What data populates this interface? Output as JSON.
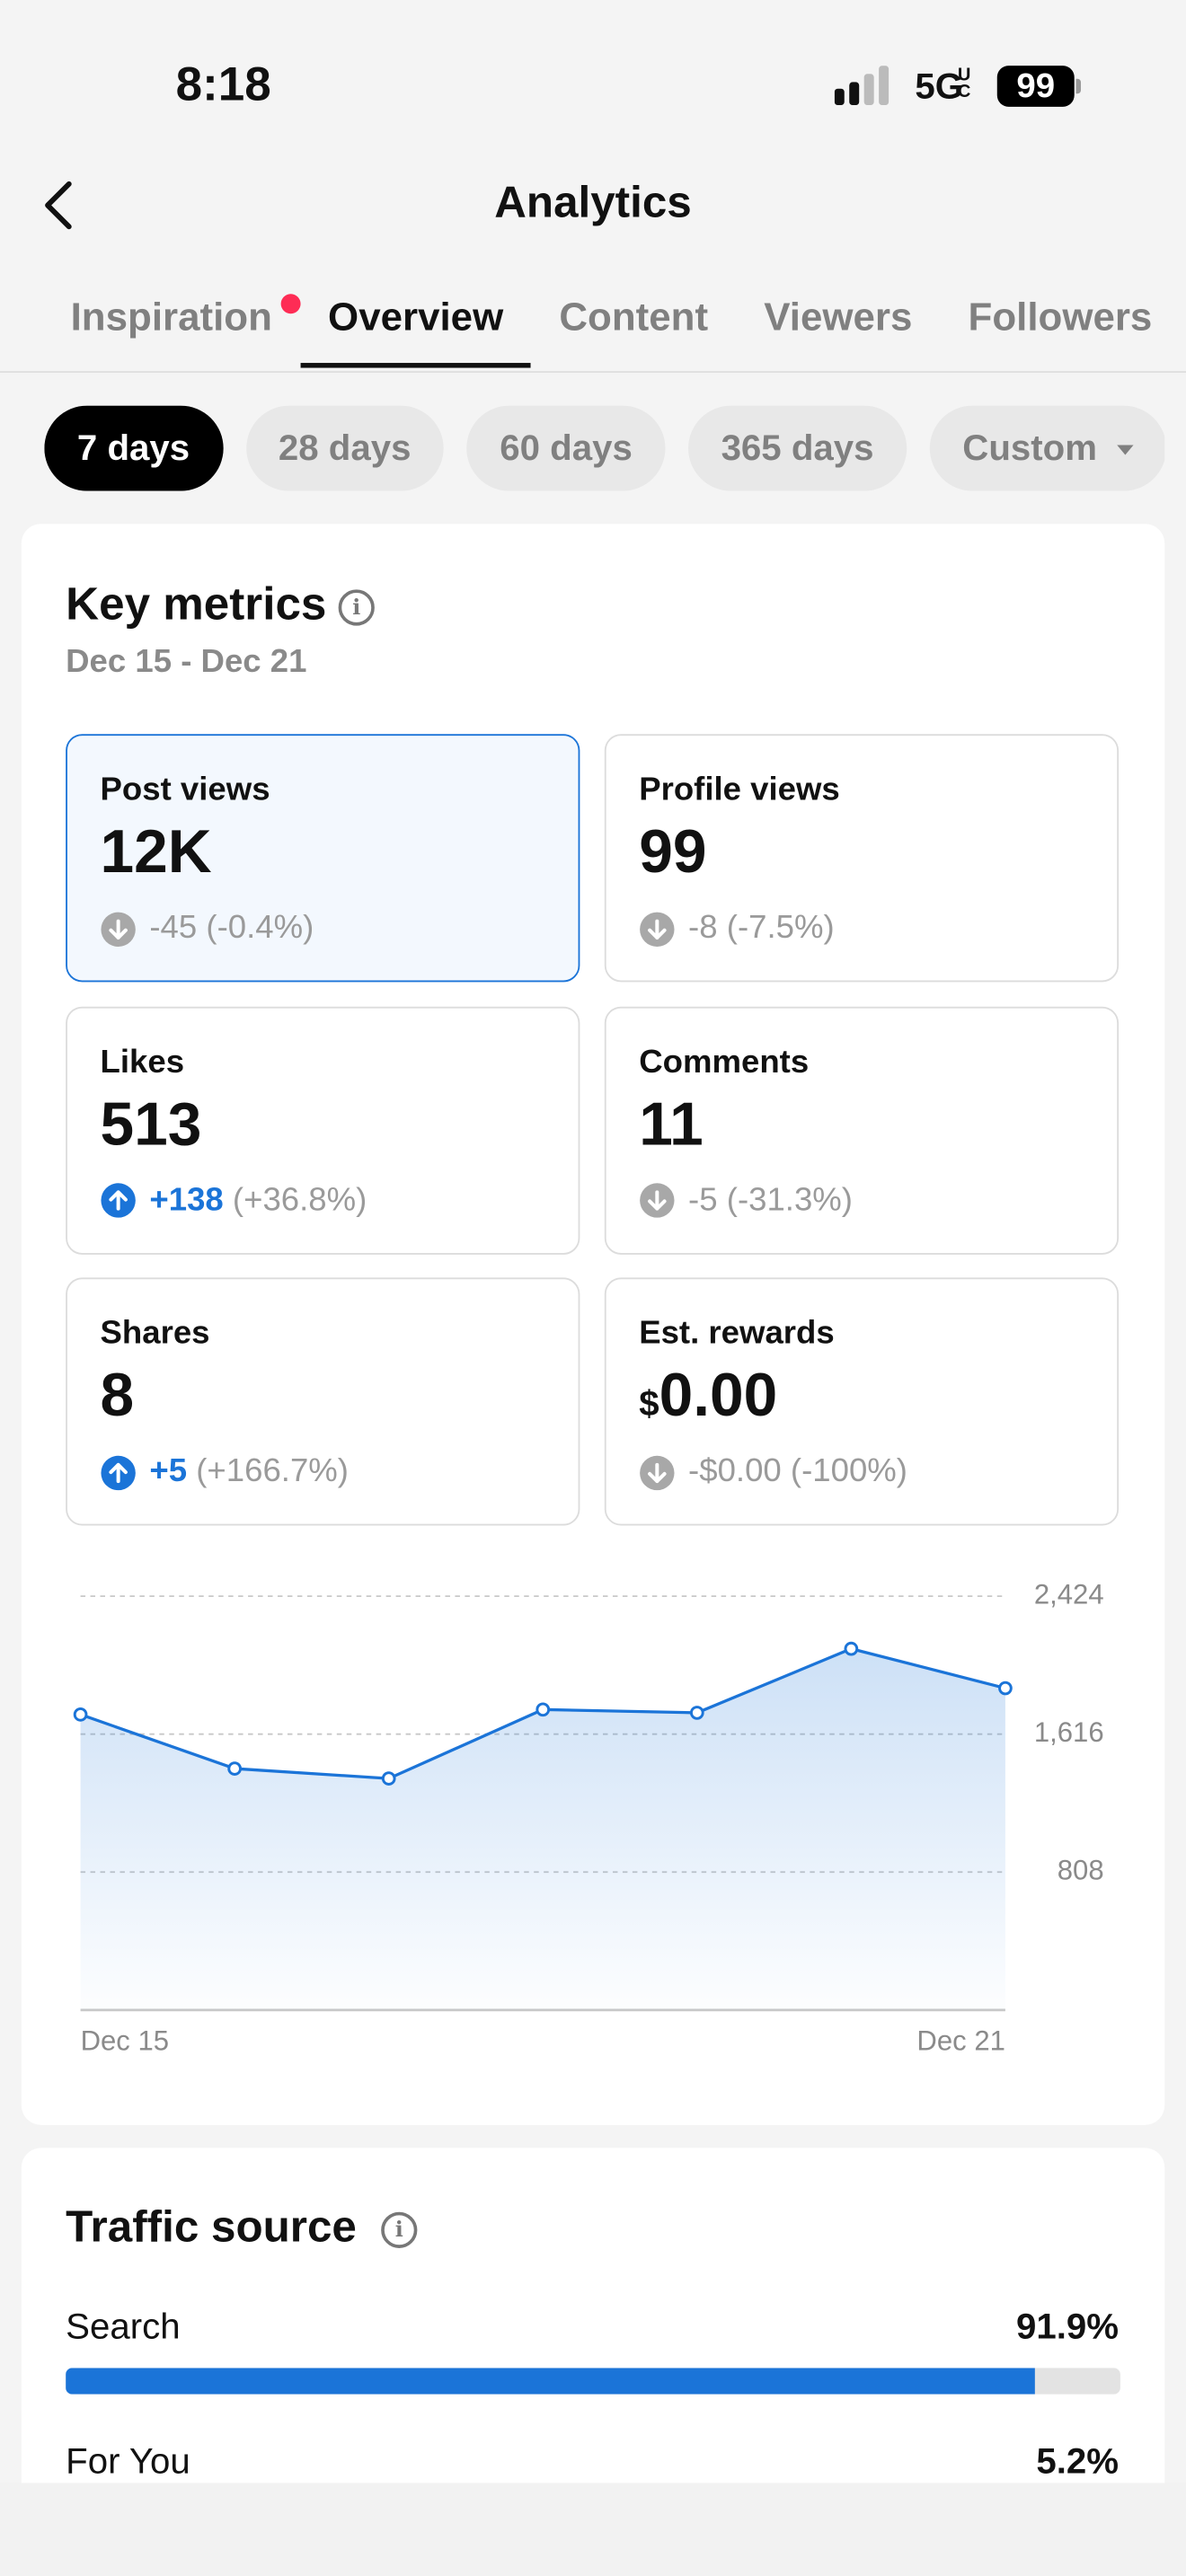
{
  "status_bar": {
    "time": "8:18",
    "network": "5G",
    "network_suffix": "UC",
    "battery": "99"
  },
  "header": {
    "title": "Analytics"
  },
  "tabs": [
    {
      "label": "Inspiration",
      "badge": true
    },
    {
      "label": "Overview",
      "badge": false
    },
    {
      "label": "Content",
      "badge": false
    },
    {
      "label": "Viewers",
      "badge": false
    },
    {
      "label": "Followers",
      "badge": false
    }
  ],
  "active_tab_index": 1,
  "date_ranges": [
    "7 days",
    "28 days",
    "60 days",
    "365 days",
    "Custom"
  ],
  "selected_range_index": 0,
  "key_metrics": {
    "title": "Key metrics",
    "period": "Dec 15 - Dec 21",
    "selected_card_index": 0,
    "cards": [
      {
        "label": "Post views",
        "currency": null,
        "value": "12K",
        "change": "-45",
        "change_pct": "(-0.4%)",
        "trend": "down"
      },
      {
        "label": "Profile views",
        "currency": null,
        "value": "99",
        "change": "-8",
        "change_pct": "(-7.5%)",
        "trend": "down"
      },
      {
        "label": "Likes",
        "currency": null,
        "value": "513",
        "change": "+138",
        "change_pct": "(+36.8%)",
        "trend": "up"
      },
      {
        "label": "Comments",
        "currency": null,
        "value": "11",
        "change": "-5",
        "change_pct": "(-31.3%)",
        "trend": "down"
      },
      {
        "label": "Shares",
        "currency": null,
        "value": "8",
        "change": "+5",
        "change_pct": "(+166.7%)",
        "trend": "up"
      },
      {
        "label": "Est. rewards",
        "currency": "$",
        "value": "0.00",
        "change": "-$0.00",
        "change_pct": "(-100%)",
        "trend": "down"
      }
    ]
  },
  "chart_data": {
    "type": "line",
    "categories": [
      "Dec 15",
      null,
      null,
      null,
      null,
      null,
      "Dec 21"
    ],
    "values": [
      1731,
      1414,
      1356,
      1760,
      1741,
      2116,
      1885
    ],
    "color": "#1b74d8",
    "ylim": [
      0,
      2424
    ],
    "yticks": [
      808,
      {
        "value": 1616,
        "label": "1,616"
      },
      {
        "value": 2424,
        "label": "2,424"
      }
    ],
    "grid": true
  },
  "traffic_source": {
    "title": "Traffic source",
    "items": [
      {
        "name": "Search",
        "percent": 91.9,
        "percent_label": "91.9%"
      },
      {
        "name": "For You",
        "percent": 5.2,
        "percent_label": "5.2%"
      }
    ]
  }
}
